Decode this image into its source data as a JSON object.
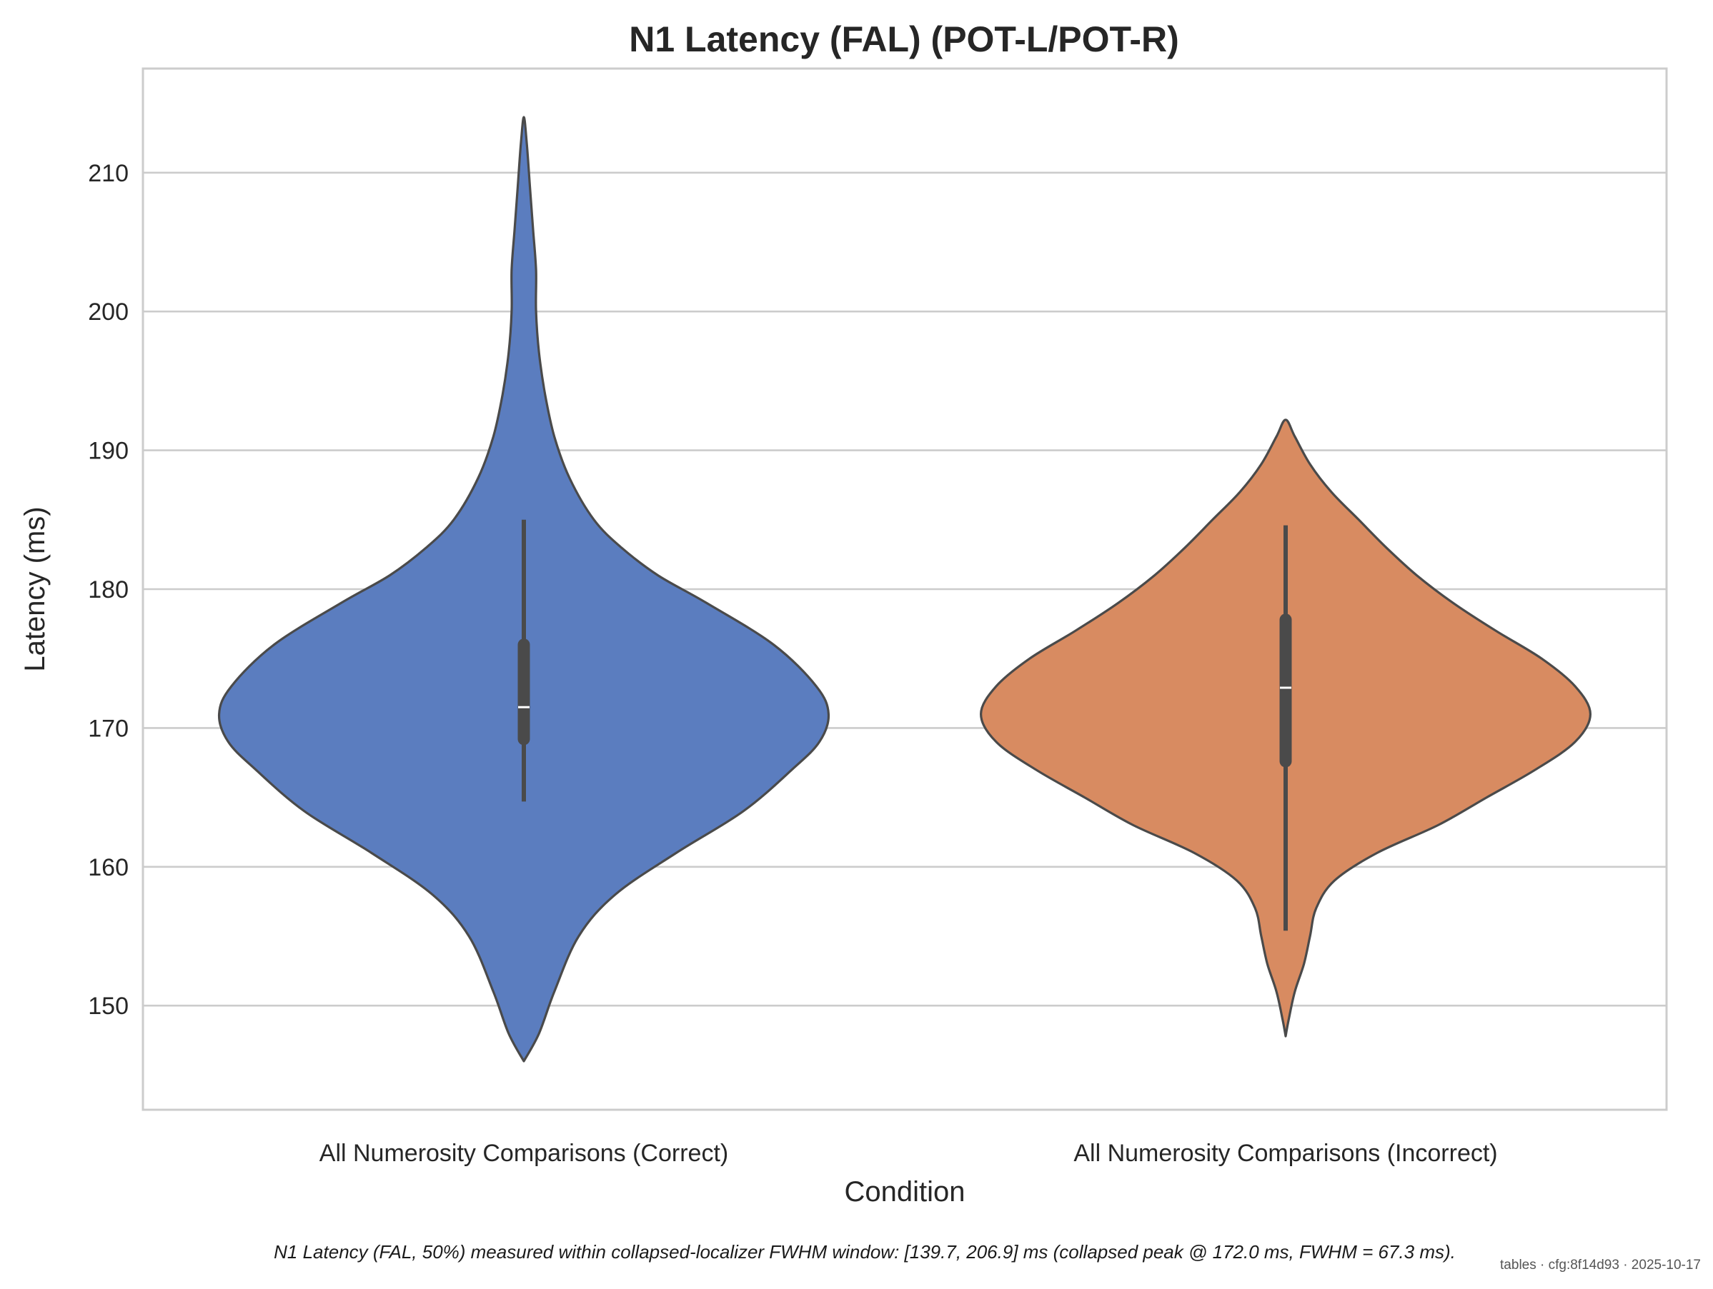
{
  "chart_data": {
    "type": "violin",
    "title": "N1 Latency (FAL) (POT-L/POT-R)",
    "xlabel": "Condition",
    "ylabel": "Latency (ms)",
    "ylim": [
      142.5,
      217.5
    ],
    "yticks": [
      150,
      160,
      170,
      180,
      190,
      200,
      210
    ],
    "grid": "horizontal",
    "categories": [
      "All Numerosity Comparisons (Correct)",
      "All Numerosity Comparisons (Incorrect)"
    ],
    "series": [
      {
        "category": "All Numerosity Comparisons (Correct)",
        "color": "#5b7dbf",
        "median": 171.5,
        "q1": 169.2,
        "q3": 176.0,
        "whisker_low": 164.7,
        "whisker_high": 185.0,
        "density": [
          [
            146.0,
            0.0
          ],
          [
            148.0,
            0.05
          ],
          [
            151.0,
            0.1
          ],
          [
            155.0,
            0.18
          ],
          [
            158.0,
            0.3
          ],
          [
            161.0,
            0.5
          ],
          [
            164.0,
            0.72
          ],
          [
            167.0,
            0.88
          ],
          [
            169.0,
            0.97
          ],
          [
            171.0,
            1.0
          ],
          [
            173.0,
            0.96
          ],
          [
            176.0,
            0.82
          ],
          [
            179.0,
            0.6
          ],
          [
            181.0,
            0.44
          ],
          [
            183.0,
            0.32
          ],
          [
            185.0,
            0.23
          ],
          [
            188.0,
            0.15
          ],
          [
            191.0,
            0.1
          ],
          [
            194.0,
            0.07
          ],
          [
            197.0,
            0.05
          ],
          [
            200.0,
            0.04
          ],
          [
            203.0,
            0.04
          ],
          [
            206.0,
            0.03
          ],
          [
            209.0,
            0.02
          ],
          [
            212.0,
            0.01
          ],
          [
            214.0,
            0.0
          ]
        ]
      },
      {
        "category": "All Numerosity Comparisons (Incorrect)",
        "color": "#d88b61",
        "median": 172.9,
        "q1": 167.6,
        "q3": 177.8,
        "whisker_low": 155.4,
        "whisker_high": 184.6,
        "density": [
          [
            147.8,
            0.0
          ],
          [
            149.0,
            0.01
          ],
          [
            151.0,
            0.03
          ],
          [
            153.0,
            0.06
          ],
          [
            155.0,
            0.08
          ],
          [
            157.0,
            0.1
          ],
          [
            159.0,
            0.16
          ],
          [
            161.0,
            0.3
          ],
          [
            163.0,
            0.5
          ],
          [
            165.0,
            0.66
          ],
          [
            167.0,
            0.82
          ],
          [
            169.0,
            0.95
          ],
          [
            171.0,
            1.0
          ],
          [
            173.0,
            0.95
          ],
          [
            175.0,
            0.84
          ],
          [
            177.0,
            0.69
          ],
          [
            179.0,
            0.55
          ],
          [
            181.0,
            0.43
          ],
          [
            183.0,
            0.33
          ],
          [
            185.0,
            0.24
          ],
          [
            187.0,
            0.15
          ],
          [
            189.0,
            0.08
          ],
          [
            191.0,
            0.03
          ],
          [
            192.2,
            0.0
          ]
        ]
      }
    ]
  },
  "caption": "N1 Latency (FAL, 50%) measured within collapsed-localizer FWHM window: [139.7, 206.9] ms (collapsed peak @ 172.0 ms, FWHM = 67.3 ms).",
  "footer": "tables · cfg:8f14d93 · 2025-10-17"
}
